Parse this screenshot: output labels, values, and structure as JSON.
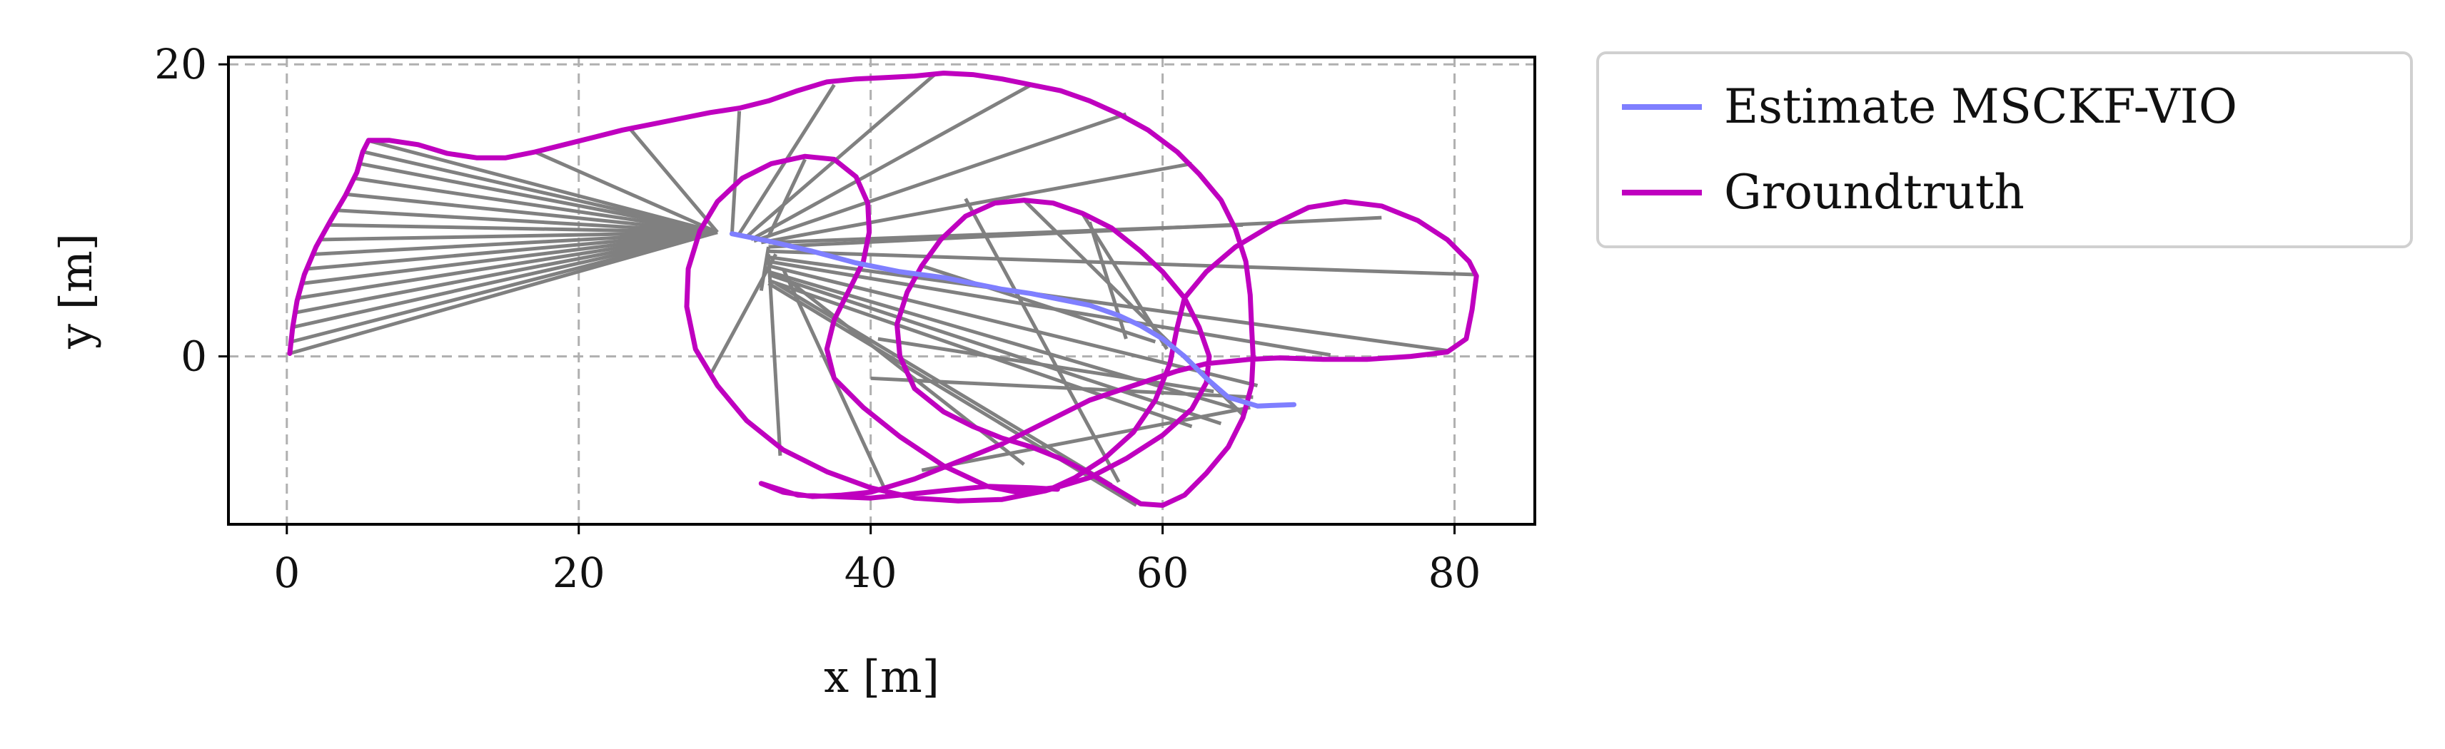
{
  "chart_data": {
    "type": "line",
    "title": "",
    "xlabel": "x [m]",
    "ylabel": "y [m]",
    "xlim": [
      -4,
      85.5
    ],
    "ylim": [
      -11.5,
      20.5
    ],
    "x_ticks": [
      0,
      20,
      40,
      60,
      80
    ],
    "y_ticks": [
      0,
      20
    ],
    "grid": true,
    "legend_position": "outside-right-top",
    "series": [
      {
        "name": "Estimate MSCKF-VIO",
        "color": "#7f7fff",
        "points": [
          [
            30.5,
            8.4
          ],
          [
            33,
            7.9
          ],
          [
            36,
            7.2
          ],
          [
            39,
            6.4
          ],
          [
            42,
            5.8
          ],
          [
            45,
            5.4
          ],
          [
            47,
            5.0
          ],
          [
            49,
            4.6
          ],
          [
            51,
            4.3
          ],
          [
            53,
            3.9
          ],
          [
            55,
            3.5
          ],
          [
            57,
            2.8
          ],
          [
            58.5,
            2.1
          ],
          [
            60,
            1.2
          ],
          [
            61.5,
            0.0
          ],
          [
            63,
            -1.5
          ],
          [
            64.5,
            -2.8
          ],
          [
            66.5,
            -3.4
          ],
          [
            69,
            -3.3
          ]
        ]
      },
      {
        "name": "Groundtruth",
        "color": "#bf00bf",
        "points": [
          [
            0.2,
            0.2
          ],
          [
            0.4,
            2.0
          ],
          [
            0.7,
            3.8
          ],
          [
            1.2,
            5.6
          ],
          [
            2.0,
            7.5
          ],
          [
            3.0,
            9.3
          ],
          [
            4.0,
            11.0
          ],
          [
            4.8,
            12.6
          ],
          [
            5.2,
            14.0
          ],
          [
            5.6,
            14.8
          ],
          [
            7,
            14.8
          ],
          [
            9,
            14.5
          ],
          [
            11,
            13.9
          ],
          [
            13,
            13.6
          ],
          [
            15,
            13.6
          ],
          [
            17,
            14.0
          ],
          [
            19,
            14.5
          ],
          [
            21,
            15.0
          ],
          [
            23,
            15.5
          ],
          [
            25,
            15.9
          ],
          [
            27,
            16.3
          ],
          [
            29,
            16.7
          ],
          [
            31,
            17.0
          ],
          [
            33,
            17.5
          ],
          [
            35,
            18.2
          ],
          [
            37,
            18.8
          ],
          [
            39,
            19.0
          ],
          [
            41,
            19.1
          ],
          [
            43,
            19.2
          ],
          [
            45,
            19.4
          ],
          [
            47,
            19.3
          ],
          [
            49,
            19.0
          ],
          [
            51,
            18.6
          ],
          [
            53,
            18.2
          ],
          [
            55,
            17.5
          ],
          [
            57,
            16.6
          ],
          [
            59,
            15.5
          ],
          [
            61,
            14.0
          ],
          [
            62.5,
            12.5
          ],
          [
            64,
            10.7
          ],
          [
            65,
            8.7
          ],
          [
            65.7,
            6.5
          ],
          [
            66,
            4.2
          ],
          [
            66.1,
            2.0
          ],
          [
            66.2,
            0.0
          ],
          [
            66.1,
            -2.0
          ],
          [
            65.5,
            -4.2
          ],
          [
            64.5,
            -6.2
          ],
          [
            63,
            -8.0
          ],
          [
            61.5,
            -9.5
          ],
          [
            60,
            -10.2
          ],
          [
            58.5,
            -10.1
          ],
          [
            57,
            -9.2
          ],
          [
            55,
            -8.0
          ],
          [
            53,
            -7.0
          ],
          [
            51,
            -6.2
          ],
          [
            49,
            -5.6
          ],
          [
            47,
            -4.8
          ],
          [
            45,
            -3.8
          ],
          [
            43,
            -2.2
          ],
          [
            42,
            0.0
          ],
          [
            41.8,
            2.2
          ],
          [
            42.5,
            4.4
          ],
          [
            43.5,
            6.2
          ],
          [
            44.8,
            8.0
          ],
          [
            46.5,
            9.6
          ],
          [
            48.5,
            10.5
          ],
          [
            50.5,
            10.7
          ],
          [
            52.5,
            10.5
          ],
          [
            54.5,
            9.8
          ],
          [
            56.5,
            8.8
          ],
          [
            58.5,
            7.2
          ],
          [
            60,
            5.8
          ],
          [
            61.5,
            4.0
          ],
          [
            62.5,
            2.0
          ],
          [
            63.2,
            0.0
          ],
          [
            63,
            -1.8
          ],
          [
            62,
            -3.6
          ],
          [
            60,
            -5.4
          ],
          [
            57.5,
            -7.0
          ],
          [
            55,
            -8.3
          ],
          [
            52,
            -9.2
          ],
          [
            49,
            -9.8
          ],
          [
            46,
            -9.9
          ],
          [
            43,
            -9.7
          ],
          [
            40,
            -9.0
          ],
          [
            37,
            -7.9
          ],
          [
            34,
            -6.4
          ],
          [
            31.5,
            -4.4
          ],
          [
            29.5,
            -2.0
          ],
          [
            28,
            0.5
          ],
          [
            27.4,
            3.4
          ],
          [
            27.5,
            6.0
          ],
          [
            28.3,
            8.6
          ],
          [
            29.5,
            10.6
          ],
          [
            31.2,
            12.2
          ],
          [
            33.2,
            13.2
          ],
          [
            35.5,
            13.7
          ],
          [
            37.5,
            13.5
          ],
          [
            39,
            12.3
          ],
          [
            39.8,
            10.5
          ],
          [
            39.9,
            8.5
          ],
          [
            39.5,
            6.5
          ],
          [
            38.5,
            4.5
          ],
          [
            37.5,
            2.5
          ],
          [
            37,
            0.5
          ],
          [
            37.5,
            -1.5
          ],
          [
            39.5,
            -3.5
          ],
          [
            42,
            -5.5
          ],
          [
            45,
            -7.5
          ],
          [
            48,
            -8.9
          ],
          [
            50,
            -9.3
          ],
          [
            52.5,
            -9.0
          ],
          [
            54,
            -8.3
          ],
          [
            56,
            -7.0
          ],
          [
            58,
            -5.2
          ],
          [
            59.5,
            -3.0
          ],
          [
            60.5,
            -0.5
          ],
          [
            61,
            2.0
          ],
          [
            61.5,
            4.0
          ],
          [
            63,
            5.8
          ],
          [
            65,
            7.5
          ],
          [
            67.5,
            9.0
          ],
          [
            70,
            10.2
          ],
          [
            72.5,
            10.6
          ],
          [
            75,
            10.3
          ],
          [
            77.5,
            9.3
          ],
          [
            79.5,
            8.0
          ],
          [
            81,
            6.5
          ],
          [
            81.5,
            5.5
          ],
          [
            81.2,
            3.2
          ],
          [
            80.8,
            1.2
          ],
          [
            79.5,
            0.3
          ],
          [
            77,
            0.0
          ],
          [
            74,
            -0.2
          ],
          [
            71,
            -0.2
          ],
          [
            68,
            -0.1
          ],
          [
            66,
            -0.2
          ],
          [
            63,
            -0.5
          ],
          [
            61,
            -1.0
          ],
          [
            58,
            -2.0
          ],
          [
            55,
            -3.0
          ],
          [
            52,
            -4.5
          ],
          [
            49,
            -6.0
          ],
          [
            46,
            -7.2
          ],
          [
            43,
            -8.4
          ],
          [
            40,
            -9.3
          ],
          [
            38,
            -9.5
          ],
          [
            36,
            -9.6
          ],
          [
            34,
            -9.3
          ],
          [
            32.5,
            -8.7
          ],
          [
            35,
            -9.5
          ],
          [
            40,
            -9.7
          ],
          [
            45,
            -9.2
          ],
          [
            48,
            -8.9
          ],
          [
            51,
            -9.0
          ],
          [
            52.8,
            -9.1
          ]
        ]
      }
    ],
    "connections": {
      "color": "#808080",
      "segments": [
        [
          [
            5.5,
            14.8
          ],
          [
            29.5,
            8.5
          ]
        ],
        [
          [
            5.3,
            14.0
          ],
          [
            29.5,
            8.5
          ]
        ],
        [
          [
            5.0,
            13.2
          ],
          [
            29.5,
            8.5
          ]
        ],
        [
          [
            4.6,
            12.2
          ],
          [
            29.5,
            8.5
          ]
        ],
        [
          [
            4.1,
            11.1
          ],
          [
            29.5,
            8.5
          ]
        ],
        [
          [
            3.5,
            10.0
          ],
          [
            29.5,
            8.5
          ]
        ],
        [
          [
            2.9,
            9.0
          ],
          [
            29.5,
            8.5
          ]
        ],
        [
          [
            2.4,
            8.0
          ],
          [
            29.5,
            8.5
          ]
        ],
        [
          [
            1.9,
            7.0
          ],
          [
            29.5,
            8.5
          ]
        ],
        [
          [
            1.5,
            6.0
          ],
          [
            29.5,
            8.5
          ]
        ],
        [
          [
            1.1,
            5.0
          ],
          [
            29.5,
            8.5
          ]
        ],
        [
          [
            0.8,
            4.0
          ],
          [
            29.5,
            8.5
          ]
        ],
        [
          [
            0.6,
            3.0
          ],
          [
            29.5,
            8.5
          ]
        ],
        [
          [
            0.4,
            2.0
          ],
          [
            29.5,
            8.5
          ]
        ],
        [
          [
            0.3,
            1.0
          ],
          [
            29.5,
            8.5
          ]
        ],
        [
          [
            0.2,
            0.2
          ],
          [
            29.5,
            8.5
          ]
        ],
        [
          [
            17,
            14.0
          ],
          [
            29.5,
            8.5
          ]
        ],
        [
          [
            23.5,
            15.6
          ],
          [
            29.5,
            8.5
          ]
        ],
        [
          [
            31,
            16.8
          ],
          [
            30.5,
            8.4
          ]
        ],
        [
          [
            37.5,
            18.6
          ],
          [
            31,
            8.4
          ]
        ],
        [
          [
            44.5,
            19.4
          ],
          [
            31.5,
            8.2
          ]
        ],
        [
          [
            51,
            18.6
          ],
          [
            31.8,
            8.0
          ]
        ],
        [
          [
            57.5,
            16.6
          ],
          [
            32,
            7.9
          ]
        ],
        [
          [
            62,
            13.2
          ],
          [
            32.5,
            7.8
          ]
        ],
        [
          [
            65.5,
            9.0
          ],
          [
            33,
            7.8
          ]
        ],
        [
          [
            75,
            9.5
          ],
          [
            33,
            7.5
          ]
        ],
        [
          [
            81.5,
            5.6
          ],
          [
            33,
            7.2
          ]
        ],
        [
          [
            79.5,
            0.4
          ],
          [
            33,
            6.8
          ]
        ],
        [
          [
            71.5,
            0.1
          ],
          [
            33,
            6.5
          ]
        ],
        [
          [
            66.5,
            -2.0
          ],
          [
            33,
            6.2
          ]
        ],
        [
          [
            65.8,
            -3.8
          ],
          [
            33,
            5.8
          ]
        ],
        [
          [
            64,
            -4.6
          ],
          [
            33,
            5.6
          ]
        ],
        [
          [
            62,
            -4.8
          ],
          [
            33,
            5.2
          ]
        ],
        [
          [
            58.2,
            -10.2
          ],
          [
            33,
            5.0
          ]
        ],
        [
          [
            56.5,
            -8.8
          ],
          [
            33.5,
            5.0
          ]
        ],
        [
          [
            50.5,
            -7.4
          ],
          [
            34,
            5.5
          ]
        ],
        [
          [
            41.2,
            -9.6
          ],
          [
            34,
            6.0
          ]
        ],
        [
          [
            33.8,
            -6.8
          ],
          [
            33,
            7.0
          ]
        ],
        [
          [
            32.5,
            4.5
          ],
          [
            33,
            7.5
          ]
        ],
        [
          [
            29,
            -1.3
          ],
          [
            33.5,
            7.0
          ]
        ],
        [
          [
            35.5,
            13.5
          ],
          [
            33,
            8.2
          ]
        ],
        [
          [
            40,
            -1.5
          ],
          [
            66.2,
            -2.8
          ]
        ],
        [
          [
            43.5,
            -7.8
          ],
          [
            66,
            -3.5
          ]
        ],
        [
          [
            40.5,
            1.2
          ],
          [
            63.5,
            -2.4
          ]
        ],
        [
          [
            43.5,
            6.2
          ],
          [
            59.5,
            1.0
          ]
        ],
        [
          [
            46.5,
            10.8
          ],
          [
            57,
            -8.6
          ]
        ],
        [
          [
            54.5,
            9.8
          ],
          [
            60.3,
            0.5
          ]
        ],
        [
          [
            50.5,
            10.7
          ],
          [
            65.5,
            -4.0
          ]
        ],
        [
          [
            57.5,
            1.2
          ],
          [
            55,
            9.2
          ]
        ]
      ]
    }
  }
}
